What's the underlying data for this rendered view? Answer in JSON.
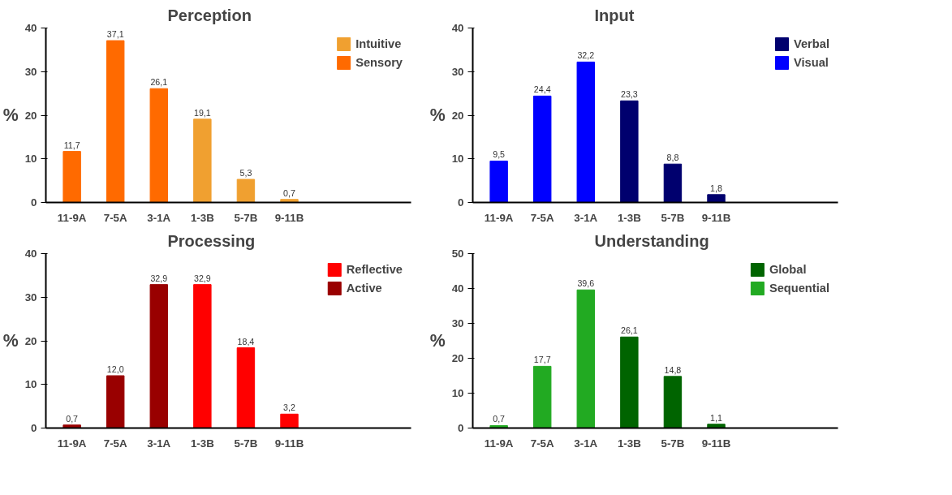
{
  "chart_data": [
    {
      "type": "bar",
      "title": "Perception",
      "ylabel": "%",
      "categories": [
        "11-9A",
        "7-5A",
        "3-1A",
        "1-3B",
        "5-7B",
        "9-11B"
      ],
      "ylim": [
        0,
        40
      ],
      "yticks": [
        0,
        10,
        20,
        30,
        40
      ],
      "grid": false,
      "legend": "top right",
      "series": [
        {
          "name": "Intuitive",
          "color": "#f0a030",
          "values": [
            null,
            null,
            null,
            19.1,
            5.3,
            0.7
          ],
          "value_labels": [
            null,
            null,
            null,
            "19,1",
            "5,3",
            "0,7"
          ]
        },
        {
          "name": "Sensory",
          "color": "#ff6a00",
          "values": [
            11.7,
            37.1,
            26.1,
            null,
            null,
            null
          ],
          "value_labels": [
            "11,7",
            "37,1",
            "26,1",
            null,
            null,
            null
          ]
        }
      ]
    },
    {
      "type": "bar",
      "title": "Input",
      "ylabel": "%",
      "categories": [
        "11-9A",
        "7-5A",
        "3-1A",
        "1-3B",
        "5-7B",
        "9-11B"
      ],
      "ylim": [
        0,
        40
      ],
      "yticks": [
        0,
        10,
        20,
        30,
        40
      ],
      "grid": false,
      "legend": "top right",
      "series": [
        {
          "name": "Verbal",
          "color": "#00006e",
          "values": [
            null,
            null,
            null,
            23.3,
            8.8,
            1.8
          ],
          "value_labels": [
            null,
            null,
            null,
            "23,3",
            "8,8",
            "1,8"
          ]
        },
        {
          "name": "Visual",
          "color": "#0000ff",
          "values": [
            9.5,
            24.4,
            32.2,
            null,
            null,
            null
          ],
          "value_labels": [
            "9,5",
            "24,4",
            "32,2",
            null,
            null,
            null
          ]
        }
      ]
    },
    {
      "type": "bar",
      "title": "Processing",
      "ylabel": "%",
      "categories": [
        "11-9A",
        "7-5A",
        "3-1A",
        "1-3B",
        "5-7B",
        "9-11B"
      ],
      "ylim": [
        0,
        40
      ],
      "yticks": [
        0,
        10,
        20,
        30,
        40
      ],
      "grid": false,
      "legend": "top right",
      "series": [
        {
          "name": "Reflective",
          "color": "#ff0000",
          "values": [
            null,
            null,
            null,
            32.9,
            18.4,
            3.2
          ],
          "value_labels": [
            null,
            null,
            null,
            "32,9",
            "18,4",
            "3,2"
          ]
        },
        {
          "name": "Active",
          "color": "#990000",
          "values": [
            0.7,
            12.0,
            32.9,
            null,
            null,
            null
          ],
          "value_labels": [
            "0,7",
            "12,0",
            "32,9",
            null,
            null,
            null
          ]
        }
      ]
    },
    {
      "type": "bar",
      "title": "Understanding",
      "ylabel": "%",
      "categories": [
        "11-9A",
        "7-5A",
        "3-1A",
        "1-3B",
        "5-7B",
        "9-11B"
      ],
      "ylim": [
        0,
        50
      ],
      "yticks": [
        0,
        10,
        20,
        30,
        40,
        50
      ],
      "grid": false,
      "legend": "top right",
      "series": [
        {
          "name": "Global",
          "color": "#006400",
          "values": [
            null,
            null,
            null,
            26.1,
            14.8,
            1.1
          ],
          "value_labels": [
            null,
            null,
            null,
            "26,1",
            "14,8",
            "1,1"
          ]
        },
        {
          "name": "Sequential",
          "color": "#22aa22",
          "values": [
            0.7,
            17.7,
            39.6,
            null,
            null,
            null
          ],
          "value_labels": [
            "0,7",
            "17,7",
            "39,6",
            null,
            null,
            null
          ]
        }
      ]
    }
  ]
}
